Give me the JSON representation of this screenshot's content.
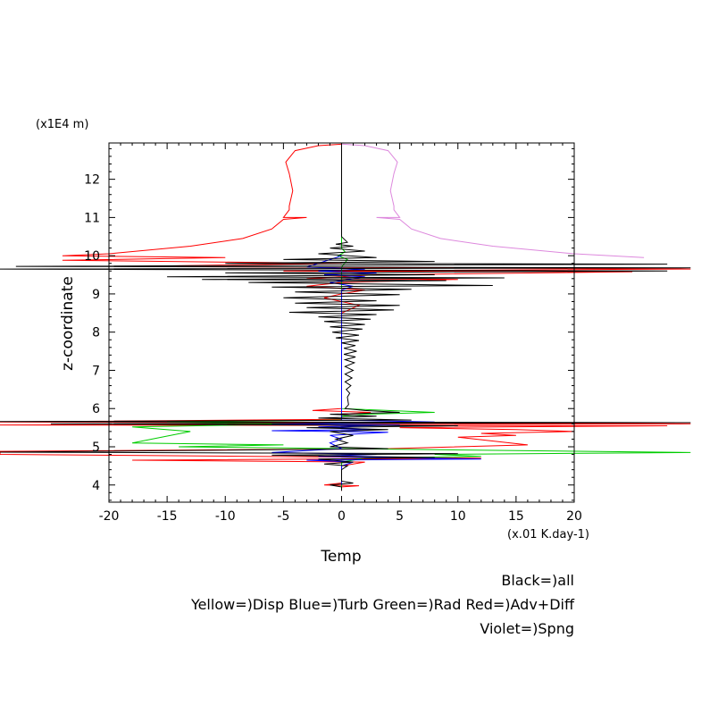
{
  "chart_data": {
    "type": "line",
    "title": "",
    "xlabel": "Temp",
    "ylabel": "z-coordinate",
    "x_unit": "(x.01 K.day-1)",
    "y_unit": "(x1E4 m)",
    "xlim": [
      -20,
      20
    ],
    "ylim": [
      3.55,
      12.95
    ],
    "x_ticks": [
      -20,
      -15,
      -10,
      -5,
      0,
      5,
      10,
      15,
      20
    ],
    "y_ticks": [
      4,
      5,
      6,
      7,
      8,
      9,
      10,
      11,
      12
    ],
    "grid": false,
    "legend": {
      "placement": "bottom-right",
      "lines": [
        "Black=)all",
        "Yellow=)Disp Blue=)Turb Green=)Rad Red=)Adv+Diff",
        "Violet=)Spng"
      ]
    },
    "series": [
      {
        "color": "#ff0000",
        "points": [
          [
            0,
            12.92
          ],
          [
            -2,
            12.88
          ],
          [
            -4,
            12.75
          ],
          [
            -4.8,
            12.45
          ],
          [
            -4.5,
            12.15
          ],
          [
            -4.2,
            11.7
          ],
          [
            -4.5,
            11.3
          ],
          [
            -4.5,
            11.2
          ],
          [
            -5.0,
            11.0
          ],
          [
            -3,
            11.0
          ],
          [
            -5.0,
            10.95
          ],
          [
            -6,
            10.7
          ],
          [
            -8.5,
            10.45
          ],
          [
            -13,
            10.25
          ],
          [
            -20,
            10.05
          ],
          [
            -24,
            10.0
          ],
          [
            -10,
            9.95
          ],
          [
            -24,
            9.88
          ],
          [
            0,
            9.8
          ],
          [
            -18,
            9.72
          ],
          [
            30,
            9.65
          ],
          [
            -5,
            9.6
          ],
          [
            25,
            9.58
          ],
          [
            3,
            9.5
          ],
          [
            -3,
            9.4
          ],
          [
            10,
            9.38
          ],
          [
            0,
            9.3
          ],
          [
            -3,
            9.2
          ],
          [
            2,
            9.1
          ],
          [
            0,
            9.0
          ],
          [
            -1.5,
            8.9
          ],
          [
            1.5,
            8.7
          ],
          [
            0,
            8.5
          ],
          [
            0,
            6.0
          ],
          [
            -2.5,
            5.95
          ],
          [
            2.5,
            5.9
          ],
          [
            0,
            5.85
          ],
          [
            0,
            5.72
          ],
          [
            -30,
            5.65
          ],
          [
            30,
            5.6
          ],
          [
            -30,
            5.57
          ],
          [
            28,
            5.55
          ],
          [
            5,
            5.5
          ],
          [
            15,
            5.45
          ],
          [
            20,
            5.4
          ],
          [
            12,
            5.35
          ],
          [
            15,
            5.3
          ],
          [
            10,
            5.25
          ],
          [
            16,
            5.05
          ],
          [
            4,
            4.95
          ],
          [
            -30,
            4.88
          ],
          [
            -30,
            4.8
          ],
          [
            12,
            4.7
          ],
          [
            -18,
            4.65
          ],
          [
            2,
            4.6
          ],
          [
            0,
            4.5
          ],
          [
            0,
            4.05
          ],
          [
            -1.5,
            4.0
          ],
          [
            1.5,
            3.98
          ],
          [
            0,
            3.95
          ],
          [
            0,
            3.85
          ]
        ]
      },
      {
        "color": "#dd88dd",
        "points": [
          [
            0,
            12.92
          ],
          [
            2,
            12.88
          ],
          [
            4,
            12.75
          ],
          [
            4.8,
            12.45
          ],
          [
            4.5,
            12.15
          ],
          [
            4.2,
            11.7
          ],
          [
            4.5,
            11.3
          ],
          [
            4.5,
            11.2
          ],
          [
            5.0,
            11.0
          ],
          [
            3,
            11.0
          ],
          [
            5.0,
            10.95
          ],
          [
            6,
            10.7
          ],
          [
            8.5,
            10.45
          ],
          [
            13,
            10.25
          ],
          [
            20,
            10.05
          ],
          [
            26,
            9.95
          ]
        ]
      },
      {
        "color": "#00cc00",
        "points": [
          [
            0,
            11.3
          ],
          [
            0,
            11.0
          ],
          [
            0,
            10.5
          ],
          [
            0,
            10.2
          ],
          [
            0.3,
            10.1
          ],
          [
            -0.3,
            10.0
          ],
          [
            0.5,
            9.9
          ],
          [
            0,
            9.7
          ],
          [
            0,
            6.0
          ],
          [
            4,
            5.95
          ],
          [
            8,
            5.9
          ],
          [
            2,
            5.85
          ],
          [
            0,
            5.8
          ],
          [
            0,
            5.7
          ],
          [
            -15,
            5.65
          ],
          [
            -3,
            5.6
          ],
          [
            -18,
            5.52
          ],
          [
            -13,
            5.4
          ],
          [
            -18,
            5.1
          ],
          [
            -5,
            5.05
          ],
          [
            -14,
            5.0
          ],
          [
            30,
            4.85
          ],
          [
            8,
            4.8
          ],
          [
            12,
            4.75
          ],
          [
            2,
            4.7
          ],
          [
            0,
            4.6
          ],
          [
            0,
            4.0
          ],
          [
            0,
            3.9
          ]
        ]
      },
      {
        "color": "#0000ff",
        "points": [
          [
            0,
            10.0
          ],
          [
            -3,
            9.7
          ],
          [
            2,
            9.65
          ],
          [
            -2,
            9.6
          ],
          [
            3,
            9.55
          ],
          [
            -1.5,
            9.5
          ],
          [
            2,
            9.45
          ],
          [
            -1,
            9.3
          ],
          [
            1,
            9.2
          ],
          [
            0,
            9.1
          ],
          [
            0,
            6.0
          ],
          [
            0,
            5.7
          ],
          [
            8,
            5.65
          ],
          [
            -6,
            5.6
          ],
          [
            5,
            5.57
          ],
          [
            -2,
            5.52
          ],
          [
            3,
            5.45
          ],
          [
            -6,
            5.42
          ],
          [
            4,
            5.38
          ],
          [
            -1,
            5.3
          ],
          [
            0,
            5.2
          ],
          [
            -1,
            5.1
          ],
          [
            0,
            4.95
          ],
          [
            -6,
            4.85
          ],
          [
            3,
            4.8
          ],
          [
            -2,
            4.75
          ],
          [
            12,
            4.68
          ],
          [
            -3,
            4.65
          ],
          [
            1,
            4.6
          ],
          [
            0,
            4.5
          ],
          [
            0,
            4.0
          ]
        ]
      },
      {
        "color": "#000000",
        "points": [
          [
            0,
            12.92
          ],
          [
            0,
            11.2
          ],
          [
            0,
            10.5
          ],
          [
            0.5,
            10.35
          ],
          [
            -0.5,
            10.3
          ],
          [
            1,
            10.25
          ],
          [
            -1,
            10.2
          ],
          [
            2,
            10.12
          ],
          [
            -2,
            10.05
          ],
          [
            3,
            9.95
          ],
          [
            -5,
            9.9
          ],
          [
            8,
            9.85
          ],
          [
            -10,
            9.8
          ],
          [
            28,
            9.78
          ],
          [
            -28,
            9.72
          ],
          [
            30,
            9.68
          ],
          [
            -30,
            9.65
          ],
          [
            28,
            9.6
          ],
          [
            -10,
            9.55
          ],
          [
            8,
            9.5
          ],
          [
            -15,
            9.45
          ],
          [
            14,
            9.42
          ],
          [
            -12,
            9.38
          ],
          [
            9,
            9.35
          ],
          [
            -8,
            9.3
          ],
          [
            13,
            9.22
          ],
          [
            -6,
            9.18
          ],
          [
            6,
            9.12
          ],
          [
            -4,
            9.05
          ],
          [
            5,
            8.98
          ],
          [
            -5,
            8.9
          ],
          [
            3,
            8.82
          ],
          [
            -4,
            8.76
          ],
          [
            5,
            8.7
          ],
          [
            -3,
            8.64
          ],
          [
            4.5,
            8.58
          ],
          [
            -4.5,
            8.52
          ],
          [
            3,
            8.46
          ],
          [
            -2,
            8.4
          ],
          [
            2.5,
            8.34
          ],
          [
            -1.5,
            8.28
          ],
          [
            2,
            8.2
          ],
          [
            -1,
            8.14
          ],
          [
            1.8,
            8.08
          ],
          [
            -0.8,
            8.0
          ],
          [
            1.5,
            7.92
          ],
          [
            -0.5,
            7.85
          ],
          [
            1.5,
            7.78
          ],
          [
            0,
            7.72
          ],
          [
            1.2,
            7.65
          ],
          [
            0.2,
            7.58
          ],
          [
            1.3,
            7.5
          ],
          [
            0.2,
            7.42
          ],
          [
            1.2,
            7.35
          ],
          [
            0.3,
            7.28
          ],
          [
            1.1,
            7.2
          ],
          [
            0.3,
            7.1
          ],
          [
            1.0,
            7.0
          ],
          [
            0.3,
            6.9
          ],
          [
            0.9,
            6.8
          ],
          [
            0.3,
            6.7
          ],
          [
            0.8,
            6.6
          ],
          [
            0.4,
            6.5
          ],
          [
            0.7,
            6.4
          ],
          [
            0.5,
            6.3
          ],
          [
            0.6,
            6.1
          ],
          [
            0.3,
            6.0
          ],
          [
            2,
            5.95
          ],
          [
            5,
            5.9
          ],
          [
            -1,
            5.85
          ],
          [
            3,
            5.8
          ],
          [
            -2,
            5.75
          ],
          [
            6,
            5.7
          ],
          [
            -30,
            5.66
          ],
          [
            30,
            5.63
          ],
          [
            -25,
            5.6
          ],
          [
            10,
            5.55
          ],
          [
            -3,
            5.5
          ],
          [
            4,
            5.45
          ],
          [
            -1,
            5.4
          ],
          [
            1,
            5.3
          ],
          [
            -0.5,
            5.2
          ],
          [
            0.5,
            5.1
          ],
          [
            -1,
            5.0
          ],
          [
            4,
            4.95
          ],
          [
            -30,
            4.86
          ],
          [
            10,
            4.82
          ],
          [
            -6,
            4.78
          ],
          [
            8,
            4.72
          ],
          [
            -2,
            4.68
          ],
          [
            1,
            4.6
          ],
          [
            -1.5,
            4.55
          ],
          [
            0.5,
            4.5
          ],
          [
            0,
            4.4
          ],
          [
            0,
            4.1
          ],
          [
            1,
            4.05
          ],
          [
            -1,
            4.0
          ],
          [
            0,
            3.95
          ],
          [
            0,
            3.85
          ]
        ]
      }
    ]
  }
}
